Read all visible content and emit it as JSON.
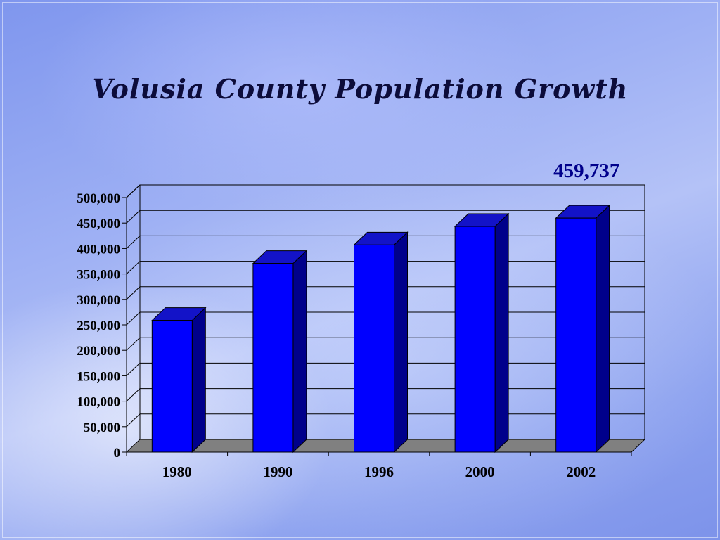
{
  "chart_data": {
    "type": "bar",
    "title": "Volusia County Population Growth",
    "xlabel": "",
    "ylabel": "",
    "categories": [
      "1980",
      "1990",
      "1996",
      "2000",
      "2002"
    ],
    "values": [
      258762,
      370712,
      407000,
      443343,
      459737
    ],
    "ylim": [
      0,
      500000
    ],
    "yticks": [
      0,
      50000,
      100000,
      150000,
      200000,
      250000,
      300000,
      350000,
      400000,
      450000,
      500000
    ],
    "ytick_labels": [
      "0",
      "50,000",
      "100,000",
      "150,000",
      "200,000",
      "250,000",
      "300,000",
      "350,000",
      "400,000",
      "450,000",
      "500,000"
    ],
    "data_labels": [
      {
        "category": "2002",
        "text": "459,737"
      }
    ],
    "grid": true,
    "legend": "none",
    "style": "3d",
    "colors": {
      "bar_front": "#0000ff",
      "bar_side": "#00008b",
      "bar_top": "#1313c8",
      "floor": "#808080",
      "label": "#00008b"
    }
  }
}
